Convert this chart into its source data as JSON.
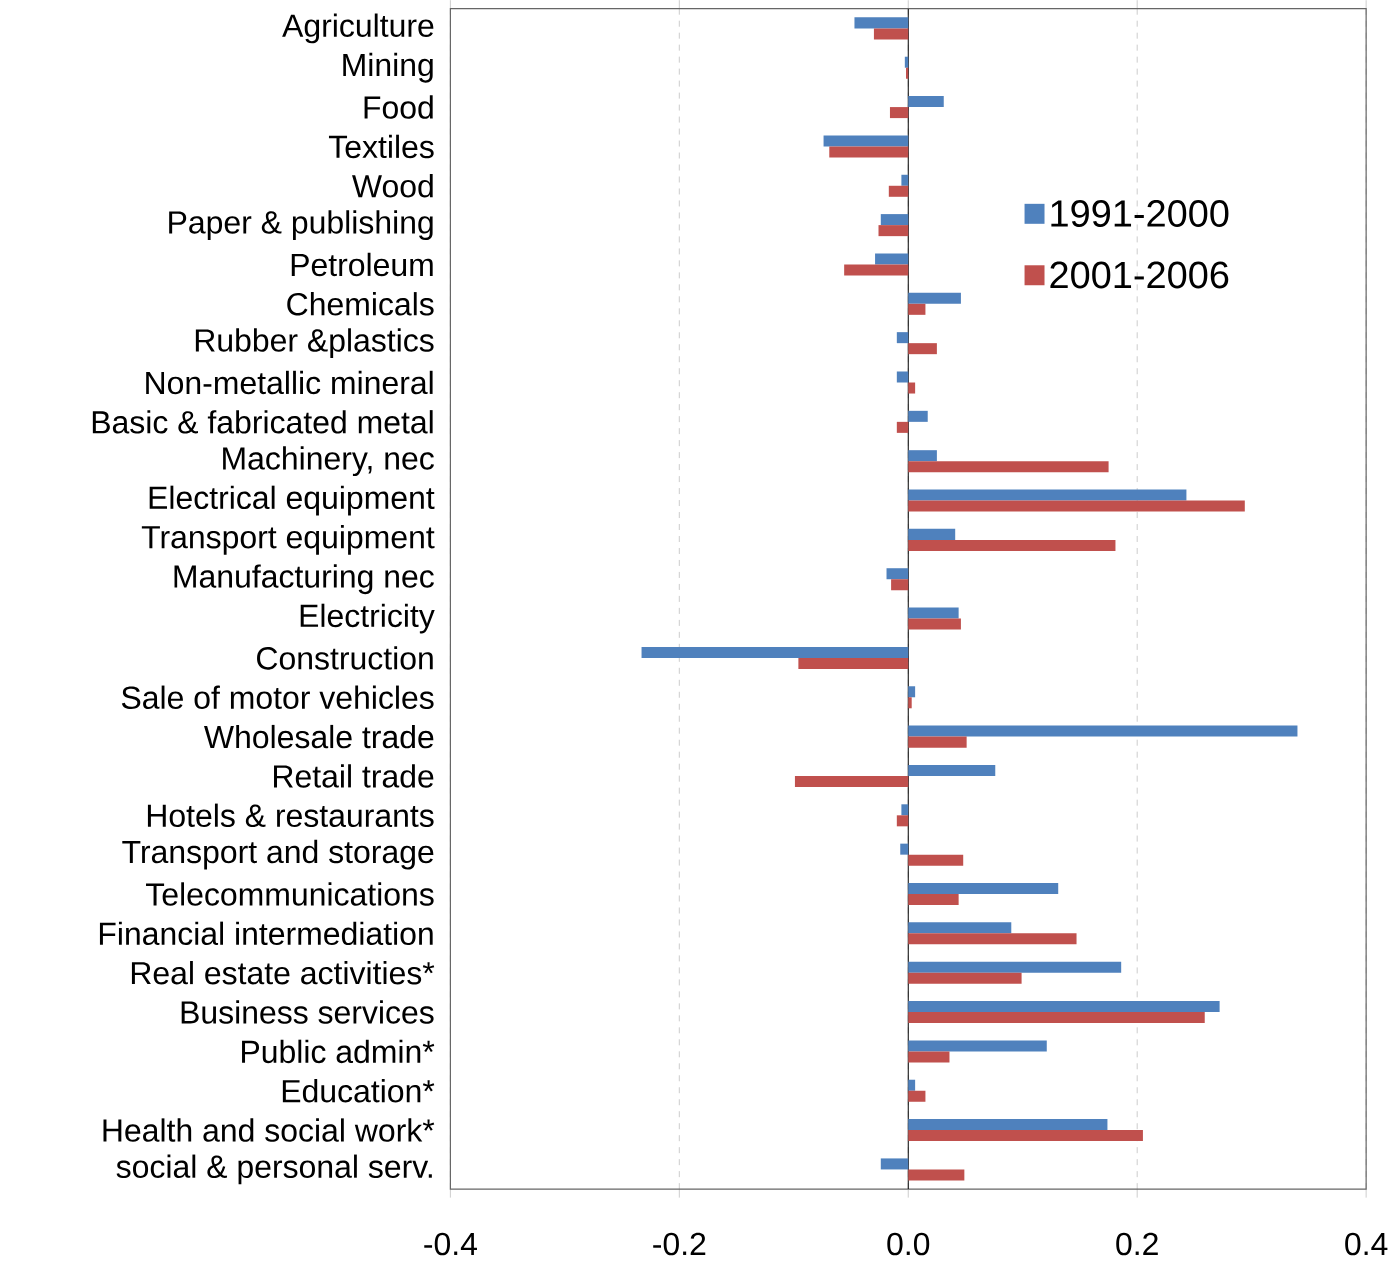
{
  "chart_data": {
    "type": "bar",
    "orientation": "horizontal",
    "categories": [
      "Agriculture",
      "Mining",
      "Food",
      "Textiles",
      "Wood",
      "Paper & publishing",
      "Petroleum",
      "Chemicals",
      "Rubber &plastics",
      "Non-metallic mineral",
      "Basic & fabricated metal",
      "Machinery, nec",
      "Electrical equipment",
      "Transport equipment",
      "Manufacturing nec",
      "Electricity",
      "Construction",
      "Sale of motor vehicles",
      "Wholesale trade",
      "Retail trade",
      "Hotels & restaurants",
      "Transport and storage",
      "Telecommunications",
      "Financial intermediation",
      "Real estate activities*",
      "Business services",
      "Public admin*",
      "Education*",
      "Health and social work*",
      "social & personal serv."
    ],
    "series": [
      {
        "name": "1991-2000",
        "color": "#4f81bd",
        "values": [
          -0.047,
          -0.003,
          0.031,
          -0.074,
          -0.006,
          -0.024,
          -0.029,
          0.046,
          -0.01,
          -0.01,
          0.017,
          0.025,
          0.243,
          0.041,
          -0.019,
          0.044,
          -0.233,
          0.006,
          0.34,
          0.076,
          -0.006,
          -0.007,
          0.131,
          0.09,
          0.186,
          0.272,
          0.121,
          0.006,
          0.174,
          -0.024
        ]
      },
      {
        "name": "2001-2006",
        "color": "#c0504d",
        "values": [
          -0.03,
          -0.002,
          -0.016,
          -0.069,
          -0.017,
          -0.026,
          -0.056,
          0.015,
          0.025,
          0.006,
          -0.01,
          0.175,
          0.294,
          0.181,
          -0.015,
          0.046,
          -0.096,
          0.003,
          0.051,
          -0.099,
          -0.01,
          0.048,
          0.044,
          0.147,
          0.099,
          0.259,
          0.036,
          0.015,
          0.205,
          0.049
        ]
      }
    ],
    "xlim": [
      -0.4,
      0.4
    ],
    "xticks": [
      -0.4,
      -0.2,
      {
        "value": 0,
        "label": "0.0"
      },
      0.2,
      0.4
    ],
    "grid": "x",
    "legend": "top right"
  }
}
